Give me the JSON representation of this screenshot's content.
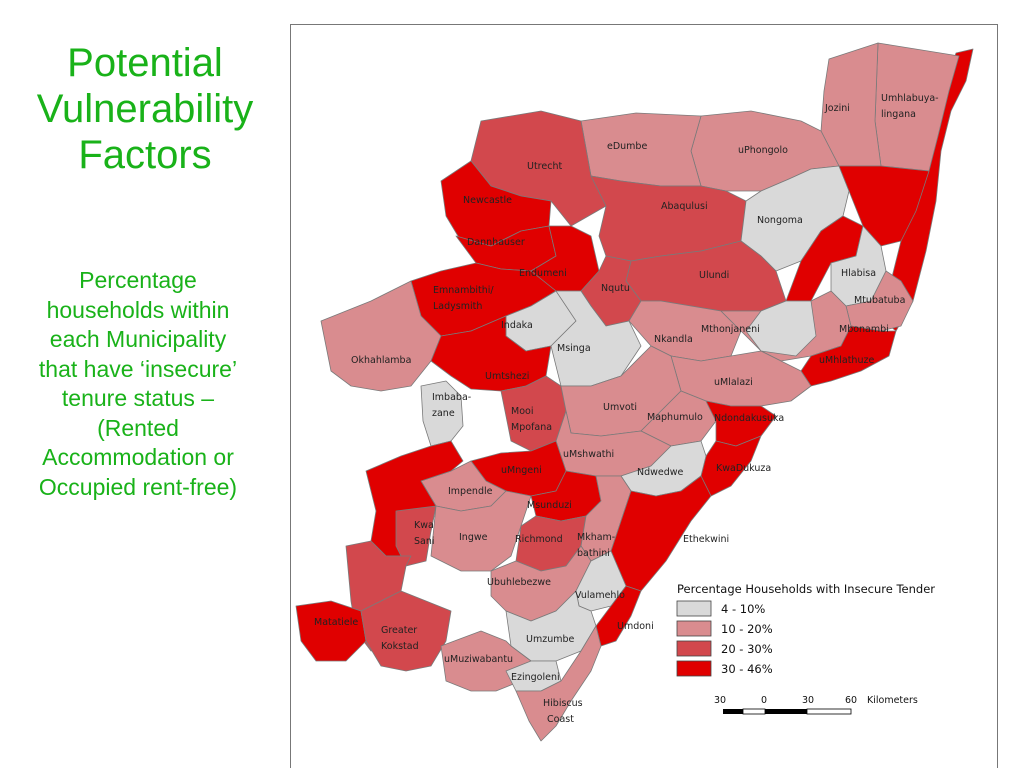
{
  "slide": {
    "title_lines": [
      "Potential",
      "Vulnerability",
      "Factors"
    ],
    "subtitle_lines": [
      "Percentage",
      "households within",
      "each Municipality",
      "that have ‘insecure’",
      "tenure status –",
      "(Rented",
      "Accommodation or",
      "Occupied rent-free)"
    ]
  },
  "legend": {
    "title": "Percentage Households with Insecure Tender",
    "classes": [
      {
        "label": "4 - 10%",
        "color": "#d9d9d9"
      },
      {
        "label": "10 - 20%",
        "color": "#d98c8f"
      },
      {
        "label": "20 - 30%",
        "color": "#d2484d"
      },
      {
        "label": "30 - 46%",
        "color": "#e00000"
      }
    ]
  },
  "scale_bar": {
    "ticks": [
      "30",
      "0",
      "30",
      "60"
    ],
    "unit": "Kilometers"
  },
  "map": {
    "municipalities": [
      {
        "name": "Jozini",
        "class": "10 - 20%"
      },
      {
        "name": "Umhlabuya-",
        "name2": "lingana",
        "class": "10 - 20%"
      },
      {
        "name": "eDumbe",
        "class": "10 - 20%"
      },
      {
        "name": "uPhongolo",
        "class": "10 - 20%"
      },
      {
        "name": "Utrecht",
        "class": "20 - 30%"
      },
      {
        "name": "Newcastle",
        "class": "30 - 46%"
      },
      {
        "name": "Abaqulusi",
        "class": "20 - 30%"
      },
      {
        "name": "Nongoma",
        "class": "4 - 10%"
      },
      {
        "name": "Dannhauser",
        "class": "30 - 46%"
      },
      {
        "name": "Endumeni",
        "class": "30 - 46%"
      },
      {
        "name": "Hlabisa",
        "class": "4 - 10%"
      },
      {
        "name": "Ulundi",
        "class": "20 - 30%"
      },
      {
        "name": "Emnambithi/",
        "name2": "Ladysmith",
        "class": "30 - 46%"
      },
      {
        "name": "Nqutu",
        "class": "20 - 30%"
      },
      {
        "name": "Mtubatuba",
        "class": "10 - 20%"
      },
      {
        "name": "Indaka",
        "class": "4 - 10%"
      },
      {
        "name": "Mbonambi",
        "class": "10 - 20%"
      },
      {
        "name": "Mthonjaneni",
        "class": "10 - 20%"
      },
      {
        "name": "Nkandla",
        "class": "10 - 20%"
      },
      {
        "name": "Msinga",
        "class": "4 - 10%"
      },
      {
        "name": "Okhahlamba",
        "class": "10 - 20%"
      },
      {
        "name": "uMhlathuze",
        "class": "30 - 46%"
      },
      {
        "name": "Umtshezi",
        "class": "30 - 46%"
      },
      {
        "name": "uMlalazi",
        "class": "10 - 20%"
      },
      {
        "name": "Imbabazane",
        "name1": "Imbaba-",
        "name2": "zane",
        "class": "4 - 10%"
      },
      {
        "name": "Mooi",
        "name2": "Mpofana",
        "class": "20 - 30%"
      },
      {
        "name": "Umvoti",
        "class": "10 - 20%"
      },
      {
        "name": "Maphumulo",
        "class": "10 - 20%"
      },
      {
        "name": "KwaDukuza",
        "class": "30 - 46%"
      },
      {
        "name": "uMshwathi",
        "class": "10 - 20%"
      },
      {
        "name": "Ndwedwe",
        "class": "4 - 10%"
      },
      {
        "name": "uMngeni",
        "class": "30 - 46%"
      },
      {
        "name": "Impendle",
        "class": "10 - 20%"
      },
      {
        "name": "Msunduzi",
        "class": "30 - 46%"
      },
      {
        "name": "Kwa",
        "name2": "Sani",
        "class": "20 - 30%"
      },
      {
        "name": "Ingwe",
        "class": "10 - 20%"
      },
      {
        "name": "Richmond",
        "class": "20 - 30%"
      },
      {
        "name": "Mkham-",
        "name2": "bathini",
        "class": "10 - 20%"
      },
      {
        "name": "Ethekwini",
        "class": "30 - 46%"
      },
      {
        "name": "Ubuhlebezwe",
        "class": "10 - 20%"
      },
      {
        "name": "Vulamehlo",
        "class": "4 - 10%"
      },
      {
        "name": "Matatiele",
        "class": "30 - 46%"
      },
      {
        "name": "Umdoni",
        "class": "30 - 46%"
      },
      {
        "name": "Greater",
        "name2": "Kokstad",
        "class": "20 - 30%"
      },
      {
        "name": "Umzumbe",
        "class": "4 - 10%"
      },
      {
        "name": "uMuziwabantu",
        "class": "10 - 20%"
      },
      {
        "name": "Ezingoleni",
        "class": "4 - 10%"
      },
      {
        "name": "Hibiscus",
        "name2": "Coast",
        "class": "10 - 20%"
      },
      {
        "name": "Ndondakusuka",
        "class": "30 - 46%"
      }
    ]
  }
}
